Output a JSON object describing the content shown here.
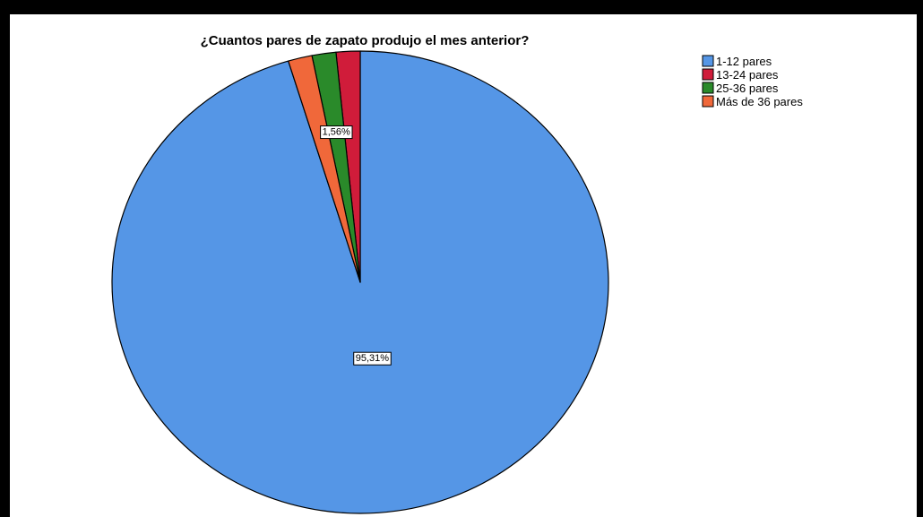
{
  "chart_data": {
    "type": "pie",
    "title": "¿Cuantos pares de zapato produjo el mes anterior?",
    "categories": [
      "1-12 pares",
      "13-24 pares",
      "25-36 pares",
      "Más de 36 pares"
    ],
    "values": [
      95.31,
      1.56,
      1.56,
      1.56
    ],
    "data_labels": [
      "95,31%",
      null,
      "1,56%",
      null
    ],
    "colors": [
      "#5596e6",
      "#d01c3a",
      "#2a8a2a",
      "#f0683a"
    ],
    "legend_position": "top-right"
  }
}
